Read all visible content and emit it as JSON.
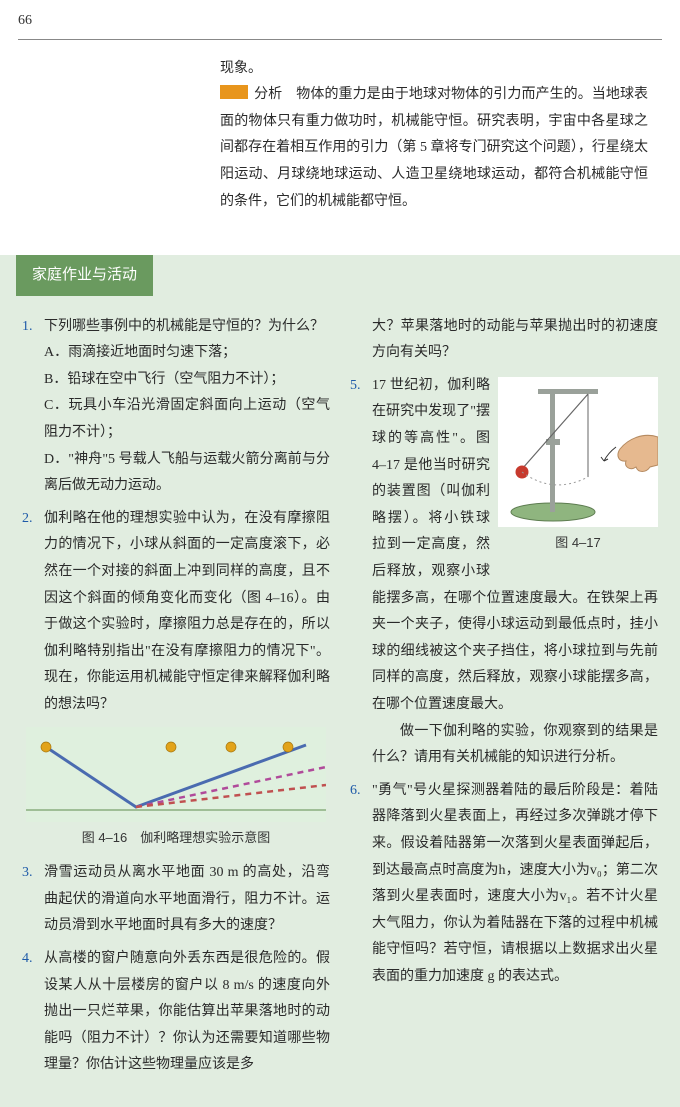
{
  "pageNumber": "66",
  "topBlock": {
    "line1": "现象。",
    "analysisLabel": "分析",
    "analysisText": "物体的重力是由于地球对物体的引力而产生的。当地球表面的物体只有重力做功时，机械能守恒。研究表明，宇宙中各星球之间都存在着相互作用的引力（第 5 章将专门研究这个问题），行星绕太阳运动、月球绕地球运动、人造卫星绕地球运动，都符合机械能守恒的条件，它们的机械能都守恒。"
  },
  "sectionTitle": "家庭作业与活动",
  "left": {
    "q1": {
      "num": "1.",
      "stem": "下列哪些事例中的机械能是守恒的？为什么？",
      "a": "A．雨滴接近地面时匀速下落；",
      "b": "B．铅球在空中飞行（空气阻力不计）；",
      "c": "C．玩具小车沿光滑固定斜面向上运动（空气阻力不计）；",
      "d": "D．\"神舟\"5 号载人飞船与运载火箭分离前与分离后做无动力运动。"
    },
    "q2": {
      "num": "2.",
      "text": "伽利略在他的理想实验中认为，在没有摩擦阻力的情况下，小球从斜面的一定高度滚下，必然在一个对接的斜面上冲到同样的高度，且不因这个斜面的倾角变化而变化（图 4–16）。由于做这个实验时，摩擦阻力总是存在的，所以伽利略特别指出\"在没有摩擦阻力的情况下\"。现在，你能运用机械能守恒定律来解释伽利略的想法吗？"
    },
    "fig416Label": "图 4–16　伽利略理想实验示意图",
    "q3": {
      "num": "3.",
      "text": "滑雪运动员从离水平地面 30 m 的高处，沿弯曲起伏的滑道向水平地面滑行，阻力不计。运动员滑到水平地面时具有多大的速度？"
    },
    "q4": {
      "num": "4.",
      "text": "从高楼的窗户随意向外丢东西是很危险的。假设某人从十层楼房的窗户以 8 m/s 的速度向外抛出一只烂苹果，你能估算出苹果落地时的动能吗（阻力不计）？你认为还需要知道哪些物理量？你估计这些物理量应该是多"
    }
  },
  "right": {
    "q4cont": "大？苹果落地时的动能与苹果抛出时的初速度方向有关吗？",
    "q5": {
      "num": "5.",
      "pre": "17 世纪初，伽利略在研究中发现了\"摆球的等高性\"。图 4–17 是他当时研究的装置图（叫伽利略摆）。将小铁球拉到一定高度，然后释放，观察小球能摆多高，在哪个位置速度最大。在铁架上再夹一个夹子，使得小球运动到最低点时，挂小球的细线被这个夹子挡住，将小球拉到与先前同样的高度，然后释放，观察小球能摆多高，在哪个位置速度最大。",
      "post": "做一下伽利略的实验，你观察到的结果是什么？请用有关机械能的知识进行分析。"
    },
    "fig417Label": "图 4–17",
    "q6": {
      "num": "6.",
      "text": "\"勇气\"号火星探测器着陆的最后阶段是：着陆器降落到火星表面上，再经过多次弹跳才停下来。假设着陆器第一次落到火星表面弹起后，到达最高点时高度为h，速度大小为v₀；第二次落到火星表面时，速度大小为v₁。若不计火星大气阻力，你认为着陆器在下落的过程中机械能守恒吗？若守恒，请根据以上数据求出火星表面的重力加速度 g 的表达式。"
    }
  },
  "fig416": {
    "bg": "#dff0de",
    "ground": "#8aad7f",
    "ball": "#e2a31a",
    "solid": "#4a6bb0",
    "dashed1": "#b04a9a",
    "dashed2": "#c05050"
  },
  "fig417": {
    "bg": "#ffffff",
    "base": "#8fb57f",
    "baseEdge": "#5e7d51",
    "stand": "#9aa19a",
    "ball": "#c73a2e",
    "string": "#666666",
    "hand": "#e6b98f"
  }
}
